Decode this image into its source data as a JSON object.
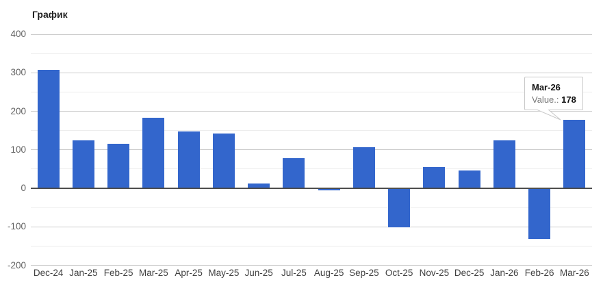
{
  "chart_data": {
    "type": "bar",
    "title": "График",
    "categories": [
      "Dec-24",
      "Jan-25",
      "Feb-25",
      "Mar-25",
      "Apr-25",
      "May-25",
      "Jun-25",
      "Jul-25",
      "Aug-25",
      "Sep-25",
      "Oct-25",
      "Nov-25",
      "Dec-25",
      "Jan-26",
      "Feb-26",
      "Mar-26"
    ],
    "series": [
      {
        "name": "Value.",
        "values": [
          308,
          124,
          116,
          184,
          147,
          143,
          13,
          78,
          -6,
          107,
          -102,
          55,
          46,
          125,
          -132,
          178
        ]
      }
    ],
    "xlabel": "",
    "ylabel": "",
    "ylim": [
      -200,
      400
    ],
    "y_ticks": [
      400,
      300,
      200,
      100,
      0,
      -100,
      -200
    ],
    "y_minor_step": 50,
    "grid": true,
    "legend_position": "none"
  },
  "tooltip": {
    "title": "Mar-26",
    "label": "Value.:",
    "value": "178",
    "target_category": "Mar-26"
  },
  "colors": {
    "bar": "#3366cc",
    "major_grid": "#cccccc",
    "minor_grid": "#ededed",
    "baseline": "#4d4d4d",
    "y_tick_text": "#616161",
    "x_tick_text": "#404040",
    "title_text": "#1f1f1f",
    "tooltip_border": "#c9c9c9",
    "tooltip_label_text": "#767676",
    "background": "#ffffff"
  }
}
